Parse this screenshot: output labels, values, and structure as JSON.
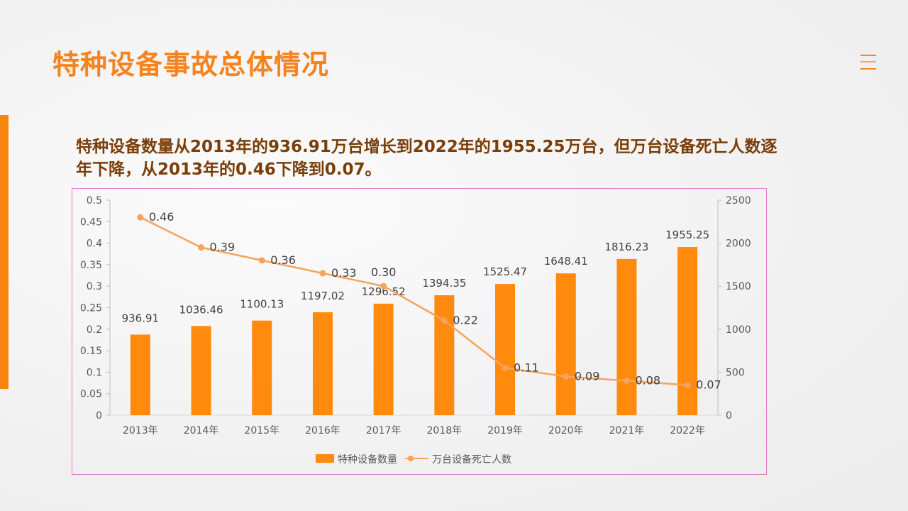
{
  "title": "特种设备事故总体情况",
  "subtitle": "特种设备数量从2013年的936.91万台增长到2022年的1955.25万台，但万台设备死亡人数逐年下降，从2013年的0.46下降到0.07。",
  "menu_icon": "hamburger-menu-icon",
  "colors": {
    "accent": "#F7860F",
    "bar": "#FF8A0D",
    "line": "#F7A35C",
    "title": "#F5831F",
    "subtitle": "#7A3E08"
  },
  "chart_data": {
    "type": "bar+line",
    "categories": [
      "2013年",
      "2014年",
      "2015年",
      "2016年",
      "2017年",
      "2018年",
      "2019年",
      "2020年",
      "2021年",
      "2022年"
    ],
    "series": [
      {
        "name": "特种设备数量",
        "type": "bar",
        "axis": "right",
        "values": [
          936.91,
          1036.46,
          1100.13,
          1197.02,
          1296.52,
          1394.35,
          1525.47,
          1648.41,
          1816.23,
          1955.25
        ],
        "labels": [
          "936.91",
          "1036.46",
          "1100.13",
          "1197.02",
          "1296.52",
          "1394.35",
          "1525.47",
          "1648.41",
          "1816.23",
          "1955.25"
        ]
      },
      {
        "name": "万台设备死亡人数",
        "type": "line",
        "axis": "left",
        "values": [
          0.46,
          0.39,
          0.36,
          0.33,
          0.3,
          0.22,
          0.11,
          0.09,
          0.08,
          0.07
        ],
        "labels": [
          "0.46",
          "0.39",
          "0.36",
          "0.33",
          "0.30",
          "0.22",
          "0.11",
          "0.09",
          "0.08",
          "0.07"
        ]
      }
    ],
    "left_axis": {
      "ylim": [
        0,
        0.5
      ],
      "ticks": [
        "0",
        "0.05",
        "0.1",
        "0.15",
        "0.2",
        "0.25",
        "0.3",
        "0.35",
        "0.4",
        "0.45",
        "0.5"
      ]
    },
    "right_axis": {
      "ylim": [
        0,
        2500
      ],
      "ticks": [
        "0",
        "500",
        "1000",
        "1500",
        "2000",
        "2500"
      ]
    },
    "legend_position": "bottom",
    "grid": false
  }
}
